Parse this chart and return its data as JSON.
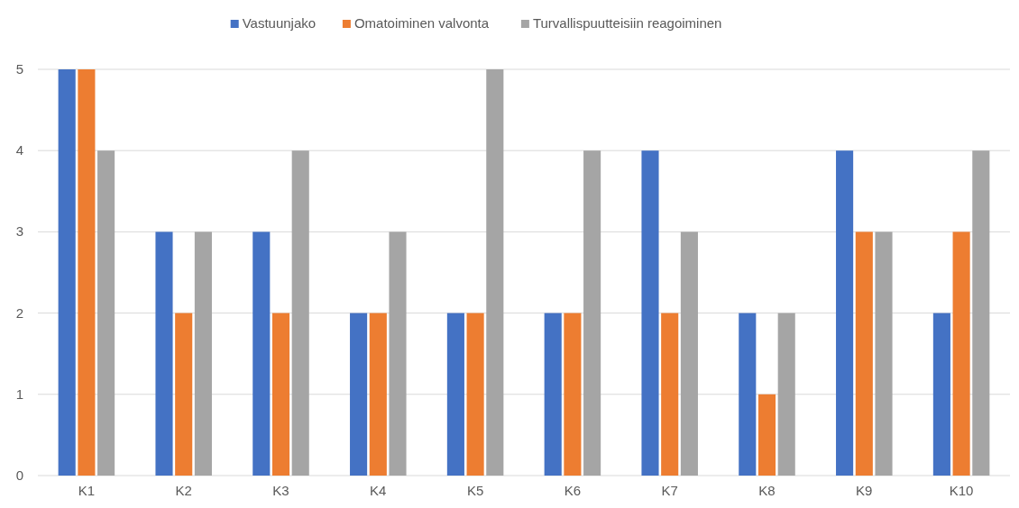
{
  "chart_data": {
    "type": "bar",
    "categories": [
      "K1",
      "K2",
      "K3",
      "K4",
      "K5",
      "K6",
      "K7",
      "K8",
      "K9",
      "K10"
    ],
    "series": [
      {
        "name": "Vastuunjako",
        "color": "#4472c4",
        "values": [
          5,
          3,
          3,
          2,
          2,
          2,
          4,
          2,
          4,
          2
        ]
      },
      {
        "name": "Omatoiminen valvonta",
        "color": "#ed7d31",
        "values": [
          5,
          2,
          2,
          2,
          2,
          2,
          2,
          1,
          3,
          3
        ]
      },
      {
        "name": "Turvallispuutteisiin reagoiminen",
        "color": "#a5a5a5",
        "values": [
          4,
          3,
          4,
          3,
          5,
          4,
          3,
          2,
          3,
          4
        ]
      }
    ],
    "ylim": [
      0,
      5
    ],
    "yticks": [
      0,
      1,
      2,
      3,
      4,
      5
    ],
    "grid": "y",
    "legend": "top"
  }
}
